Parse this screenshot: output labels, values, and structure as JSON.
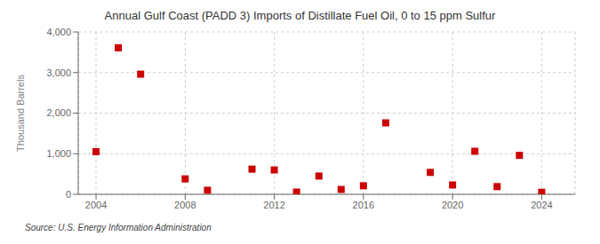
{
  "chart_data": {
    "type": "scatter",
    "title": "Annual Gulf Coast (PADD 3) Imports of Distillate Fuel Oil, 0 to 15 ppm Sulfur",
    "ylabel": "Thousand Barrels",
    "annotations": [
      "Source: U.S. Energy Information Administration"
    ],
    "x": [
      2004,
      2005,
      2006,
      2008,
      2009,
      2011,
      2012,
      2013,
      2014,
      2015,
      2016,
      2017,
      2019,
      2020,
      2021,
      2022,
      2023,
      2024
    ],
    "values": [
      1050,
      3610,
      2960,
      380,
      100,
      620,
      600,
      55,
      450,
      120,
      210,
      1760,
      540,
      230,
      1060,
      190,
      960,
      50
    ],
    "color": "#cc0000",
    "marker": "square",
    "xlim": [
      2003.2,
      2025.5
    ],
    "xticks": [
      2004,
      2008,
      2012,
      2016,
      2020,
      2024
    ],
    "ylim": [
      0,
      4000
    ],
    "yticks": [
      0,
      {
        "value": 1000,
        "label": "1,000"
      },
      {
        "value": 2000,
        "label": "2,000"
      },
      {
        "value": 3000,
        "label": "3,000"
      },
      {
        "value": 4000,
        "label": "4,000"
      }
    ],
    "grid": true
  }
}
